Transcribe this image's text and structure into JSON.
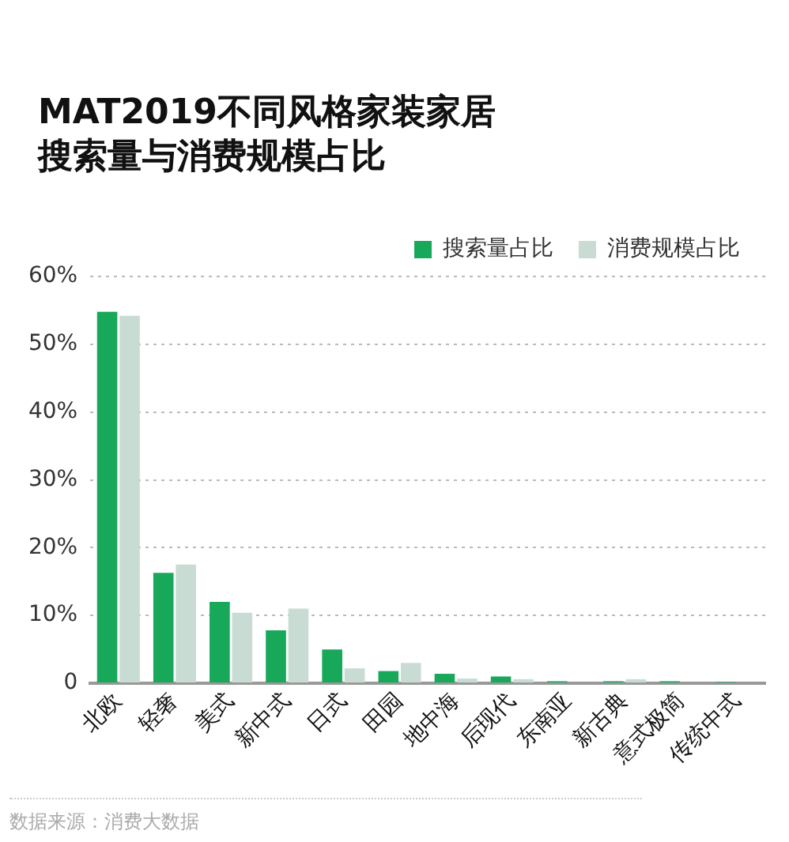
{
  "chart_data": {
    "type": "bar",
    "title": "MAT2019不同风格家装家居搜索量与消费规模占比",
    "categories": [
      "北欧",
      "轻奢",
      "美式",
      "新中式",
      "日式",
      "田园",
      "地中海",
      "后现代",
      "东南亚",
      "新古典",
      "意式极简",
      "传统中式"
    ],
    "series": [
      {
        "name": "搜索量占比",
        "color": "#17a85a",
        "values": [
          54.8,
          16.3,
          12.0,
          7.8,
          5.0,
          1.8,
          1.4,
          1.0,
          0.3,
          0.3,
          0.3,
          0.2
        ]
      },
      {
        "name": "消费规模占比",
        "color": "#c9dcd3",
        "values": [
          54.2,
          17.5,
          10.4,
          11.0,
          2.2,
          3.0,
          0.7,
          0.6,
          null,
          0.6,
          null,
          null
        ]
      }
    ],
    "ylim": [
      0,
      60
    ],
    "yticks": [
      {
        "value": 0,
        "label": "0"
      },
      {
        "value": 10,
        "label": "10%"
      },
      {
        "value": 20,
        "label": "20%"
      },
      {
        "value": 30,
        "label": "30%"
      },
      {
        "value": 40,
        "label": "40%"
      },
      {
        "value": 50,
        "label": "50%"
      },
      {
        "value": 60,
        "label": "60%"
      }
    ],
    "grid": "y",
    "legend": "top right",
    "annotations": [
      "数据来源：消费大数据"
    ]
  }
}
